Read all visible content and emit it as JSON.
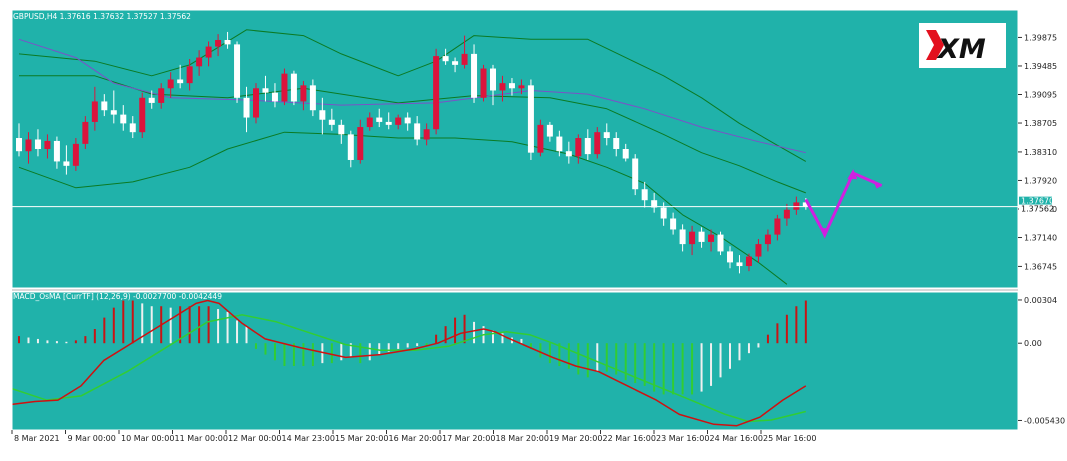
{
  "colors": {
    "background": "#20b2aa",
    "frame": "#ffffff",
    "bull_candle": "#dc143c",
    "bear_candle": "#ffffff",
    "bollinger": "#0b7a23",
    "moving_average": "#7a52c8",
    "macd_line": "#d01010",
    "signal_line": "#32cd32",
    "osma_up": "#c81414",
    "osma_down": "#f0f0f0",
    "osma_green": "#32cd32",
    "arrow": "#d020e0"
  },
  "header": {
    "symbol_info": "GBPUSD,H4  1.37616 1.37632 1.37527 1.37562",
    "indicator_info": "MACD_OsMA [CurrTF] (12,26,9) -0.0027700 -0.0042449"
  },
  "logo": {
    "text": "XM"
  },
  "chart_data": [
    {
      "type": "candlestick",
      "symbol": "GBPUSD",
      "timeframe": "H4",
      "ylim": [
        1.3645,
        1.4025
      ],
      "y_ticks": [
        "1.39875",
        "1.39485",
        "1.39095",
        "1.38705",
        "1.38310",
        "1.37920",
        "1.37530",
        "1.37140",
        "1.36745"
      ],
      "price_labels": [
        "1.37670",
        "1.37562"
      ],
      "current_price": 1.37562,
      "x_ticks": [
        "8 Mar 2021",
        "9 Mar 00:00",
        "10 Mar 00:00",
        "11 Mar 00:00",
        "12 Mar 00:00",
        "14 Mar 23:00",
        "15 Mar 20:00",
        "16 Mar 20:00",
        "17 Mar 20:00",
        "18 Mar 20:00",
        "19 Mar 20:00",
        "22 Mar 16:00",
        "23 Mar 16:00",
        "24 Mar 16:00",
        "25 Mar 16:00"
      ],
      "candles": [
        [
          1.385,
          1.387,
          1.3825,
          1.3832
        ],
        [
          1.3832,
          1.3858,
          1.3815,
          1.3848
        ],
        [
          1.3848,
          1.3862,
          1.3825,
          1.3835
        ],
        [
          1.3835,
          1.3855,
          1.3822,
          1.3846
        ],
        [
          1.3846,
          1.3852,
          1.3808,
          1.3818
        ],
        [
          1.3818,
          1.384,
          1.38,
          1.3812
        ],
        [
          1.3812,
          1.385,
          1.3805,
          1.3842
        ],
        [
          1.3842,
          1.388,
          1.3835,
          1.3872
        ],
        [
          1.3872,
          1.392,
          1.386,
          1.39
        ],
        [
          1.39,
          1.391,
          1.388,
          1.3888
        ],
        [
          1.3888,
          1.3915,
          1.387,
          1.3882
        ],
        [
          1.3882,
          1.3895,
          1.386,
          1.387
        ],
        [
          1.387,
          1.388,
          1.385,
          1.3858
        ],
        [
          1.3858,
          1.3912,
          1.385,
          1.3905
        ],
        [
          1.3905,
          1.3915,
          1.389,
          1.3898
        ],
        [
          1.3898,
          1.3925,
          1.389,
          1.3918
        ],
        [
          1.3918,
          1.394,
          1.3905,
          1.393
        ],
        [
          1.393,
          1.395,
          1.3918,
          1.3925
        ],
        [
          1.3925,
          1.3958,
          1.3915,
          1.3948
        ],
        [
          1.3948,
          1.397,
          1.3935,
          1.396
        ],
        [
          1.396,
          1.3982,
          1.3948,
          1.3975
        ],
        [
          1.3975,
          1.3992,
          1.3962,
          1.3984
        ],
        [
          1.3984,
          1.3995,
          1.3972,
          1.3978
        ],
        [
          1.3978,
          1.3982,
          1.3898,
          1.3905
        ],
        [
          1.3905,
          1.392,
          1.3858,
          1.3878
        ],
        [
          1.3878,
          1.3925,
          1.387,
          1.3918
        ],
        [
          1.3918,
          1.3935,
          1.39,
          1.3912
        ],
        [
          1.3912,
          1.3925,
          1.3892,
          1.39
        ],
        [
          1.39,
          1.3945,
          1.3895,
          1.3938
        ],
        [
          1.3938,
          1.3942,
          1.3895,
          1.39
        ],
        [
          1.39,
          1.3928,
          1.3888,
          1.3922
        ],
        [
          1.3922,
          1.393,
          1.388,
          1.3888
        ],
        [
          1.3888,
          1.3905,
          1.3855,
          1.3875
        ],
        [
          1.3875,
          1.389,
          1.386,
          1.3868
        ],
        [
          1.3868,
          1.3875,
          1.3842,
          1.3855
        ],
        [
          1.3855,
          1.386,
          1.381,
          1.382
        ],
        [
          1.382,
          1.3875,
          1.3815,
          1.3865
        ],
        [
          1.3865,
          1.3885,
          1.386,
          1.3878
        ],
        [
          1.3878,
          1.389,
          1.3865,
          1.3872
        ],
        [
          1.3872,
          1.3885,
          1.3862,
          1.3868
        ],
        [
          1.3868,
          1.3882,
          1.3862,
          1.3878
        ],
        [
          1.3878,
          1.3885,
          1.386,
          1.387
        ],
        [
          1.387,
          1.388,
          1.384,
          1.3848
        ],
        [
          1.3848,
          1.387,
          1.384,
          1.3862
        ],
        [
          1.3862,
          1.3972,
          1.3855,
          1.3962
        ],
        [
          1.3962,
          1.3972,
          1.395,
          1.3955
        ],
        [
          1.3955,
          1.396,
          1.394,
          1.395
        ],
        [
          1.395,
          1.399,
          1.3945,
          1.3965
        ],
        [
          1.3965,
          1.3978,
          1.3898,
          1.3905
        ],
        [
          1.3905,
          1.395,
          1.39,
          1.3945
        ],
        [
          1.3945,
          1.395,
          1.3895,
          1.3915
        ],
        [
          1.3915,
          1.3935,
          1.39,
          1.3925
        ],
        [
          1.3925,
          1.3932,
          1.3908,
          1.3918
        ],
        [
          1.3918,
          1.393,
          1.391,
          1.3922
        ],
        [
          1.3922,
          1.393,
          1.382,
          1.383
        ],
        [
          1.383,
          1.3875,
          1.3825,
          1.3868
        ],
        [
          1.3868,
          1.3872,
          1.3845,
          1.3852
        ],
        [
          1.3852,
          1.386,
          1.3825,
          1.3832
        ],
        [
          1.3832,
          1.3845,
          1.3815,
          1.3825
        ],
        [
          1.3825,
          1.3855,
          1.3815,
          1.385
        ],
        [
          1.385,
          1.3862,
          1.382,
          1.3828
        ],
        [
          1.3828,
          1.3865,
          1.3822,
          1.3858
        ],
        [
          1.3858,
          1.387,
          1.384,
          1.385
        ],
        [
          1.385,
          1.3858,
          1.3825,
          1.3835
        ],
        [
          1.3835,
          1.3842,
          1.3818,
          1.3822
        ],
        [
          1.3822,
          1.3828,
          1.3772,
          1.378
        ],
        [
          1.378,
          1.379,
          1.3755,
          1.3765
        ],
        [
          1.3765,
          1.3775,
          1.3748,
          1.3755
        ],
        [
          1.3755,
          1.3762,
          1.373,
          1.374
        ],
        [
          1.374,
          1.3748,
          1.3718,
          1.3725
        ],
        [
          1.3725,
          1.3732,
          1.3695,
          1.3705
        ],
        [
          1.3705,
          1.373,
          1.369,
          1.3722
        ],
        [
          1.3722,
          1.3728,
          1.37,
          1.3708
        ],
        [
          1.3708,
          1.3725,
          1.3695,
          1.3718
        ],
        [
          1.3718,
          1.3722,
          1.369,
          1.3695
        ],
        [
          1.3695,
          1.3702,
          1.3672,
          1.368
        ],
        [
          1.368,
          1.369,
          1.3665,
          1.3675
        ],
        [
          1.3675,
          1.3692,
          1.3668,
          1.3688
        ],
        [
          1.3688,
          1.3712,
          1.368,
          1.3705
        ],
        [
          1.3705,
          1.3725,
          1.3695,
          1.3718
        ],
        [
          1.3718,
          1.3745,
          1.371,
          1.374
        ],
        [
          1.374,
          1.376,
          1.373,
          1.3752
        ],
        [
          1.3752,
          1.377,
          1.3745,
          1.3762
        ],
        [
          1.3762,
          1.3768,
          1.3752,
          1.3756
        ]
      ],
      "bollinger": {
        "upper": [
          [
            0,
            1.3965
          ],
          [
            8,
            1.3955
          ],
          [
            14,
            1.3935
          ],
          [
            18,
            1.395
          ],
          [
            24,
            1.3998
          ],
          [
            30,
            1.399
          ],
          [
            34,
            1.3965
          ],
          [
            40,
            1.3935
          ],
          [
            44,
            1.3955
          ],
          [
            48,
            1.399
          ],
          [
            54,
            1.3985
          ],
          [
            60,
            1.3985
          ],
          [
            64,
            1.396
          ],
          [
            68,
            1.3935
          ],
          [
            72,
            1.3905
          ],
          [
            76,
            1.387
          ],
          [
            80,
            1.384
          ],
          [
            83,
            1.3818
          ]
        ],
        "middle": [
          [
            0,
            1.3935
          ],
          [
            8,
            1.3935
          ],
          [
            14,
            1.391
          ],
          [
            22,
            1.3905
          ],
          [
            30,
            1.3918
          ],
          [
            40,
            1.3898
          ],
          [
            48,
            1.3908
          ],
          [
            56,
            1.3905
          ],
          [
            62,
            1.389
          ],
          [
            68,
            1.3855
          ],
          [
            72,
            1.383
          ],
          [
            76,
            1.3812
          ],
          [
            80,
            1.379
          ],
          [
            83,
            1.3775
          ]
        ],
        "lower": [
          [
            0,
            1.381
          ],
          [
            6,
            1.3782
          ],
          [
            12,
            1.379
          ],
          [
            18,
            1.381
          ],
          [
            22,
            1.3835
          ],
          [
            28,
            1.3858
          ],
          [
            34,
            1.3855
          ],
          [
            40,
            1.385
          ],
          [
            46,
            1.385
          ],
          [
            52,
            1.3845
          ],
          [
            58,
            1.3828
          ],
          [
            62,
            1.381
          ],
          [
            66,
            1.3788
          ],
          [
            70,
            1.3745
          ],
          [
            74,
            1.3715
          ],
          [
            78,
            1.368
          ],
          [
            81,
            1.365
          ]
        ]
      },
      "moving_average": [
        [
          0,
          1.3985
        ],
        [
          6,
          1.396
        ],
        [
          10,
          1.3925
        ],
        [
          16,
          1.3905
        ],
        [
          24,
          1.3902
        ],
        [
          34,
          1.3895
        ],
        [
          44,
          1.3898
        ],
        [
          54,
          1.3915
        ],
        [
          60,
          1.391
        ],
        [
          66,
          1.389
        ],
        [
          72,
          1.3865
        ],
        [
          78,
          1.3845
        ],
        [
          83,
          1.383
        ]
      ],
      "forecast_arrow": [
        [
          83,
          1.3766
        ],
        [
          85,
          1.3718
        ],
        [
          88,
          1.3802
        ],
        [
          91,
          1.3785
        ]
      ]
    },
    {
      "type": "histogram_with_lines",
      "title": "MACD_OsMA [CurrTF] (12,26,9)",
      "ylim": [
        -0.0061,
        0.0036
      ],
      "y_ticks": [
        "0.00304",
        "0.00",
        "-0.005430"
      ],
      "osma": [
        0.0005,
        0.0004,
        0.0003,
        0.0002,
        0.00015,
        0.0001,
        0.0002,
        0.0005,
        0.001,
        0.0018,
        0.0025,
        0.003,
        0.003,
        0.0028,
        0.0026,
        0.0026,
        0.0025,
        0.0026,
        0.0026,
        0.0026,
        0.0026,
        0.0024,
        0.0022,
        0.0016,
        0.0012,
        -0.0004,
        -0.0008,
        -0.0012,
        -0.0016,
        -0.0016,
        -0.0016,
        -0.0016,
        -0.0014,
        -0.0014,
        -0.0012,
        -0.001,
        -0.0014,
        -0.0012,
        -0.0008,
        -0.0006,
        -0.0004,
        -0.0003,
        -0.0002,
        -0.0002,
        0.0006,
        0.0012,
        0.0018,
        0.002,
        0.0015,
        0.0012,
        0.0009,
        0.0007,
        0.0004,
        0.0003,
        -0.0004,
        -0.001,
        -0.0014,
        -0.0016,
        -0.0018,
        -0.0022,
        -0.0024,
        -0.002,
        -0.002,
        -0.0022,
        -0.0026,
        -0.0028,
        -0.003,
        -0.0034,
        -0.0036,
        -0.0036,
        -0.0036,
        -0.0036,
        -0.0034,
        -0.003,
        -0.0024,
        -0.0018,
        -0.0012,
        -0.0007,
        -0.0003,
        0.0006,
        0.0014,
        0.002,
        0.0026,
        0.003
      ],
      "macd": [
        [
          0,
          -0.0043
        ],
        [
          4,
          -0.0041
        ],
        [
          8,
          -0.004
        ],
        [
          12,
          -0.003
        ],
        [
          16,
          -0.0012
        ],
        [
          22,
          0.0003
        ],
        [
          28,
          0.0018
        ],
        [
          32,
          0.0028
        ],
        [
          34,
          0.003
        ],
        [
          36,
          0.0028
        ],
        [
          40,
          0.0014
        ],
        [
          44,
          0.0003
        ],
        [
          50,
          -0.0003
        ],
        [
          58,
          -0.001
        ],
        [
          64,
          -0.0008
        ],
        [
          70,
          -0.0004
        ],
        [
          74,
          0.0
        ],
        [
          78,
          0.0007
        ],
        [
          82,
          0.001
        ],
        [
          84,
          0.0008
        ],
        [
          86,
          0.0004
        ],
        [
          90,
          -0.0003
        ],
        [
          94,
          -0.001
        ],
        [
          98,
          -0.0016
        ],
        [
          102,
          -0.002
        ],
        [
          106,
          -0.0028
        ],
        [
          112,
          -0.004
        ],
        [
          116,
          -0.005
        ],
        [
          122,
          -0.0057
        ],
        [
          126,
          -0.0058
        ],
        [
          130,
          -0.0052
        ],
        [
          134,
          -0.004
        ],
        [
          138,
          -0.003
        ]
      ],
      "signal": [
        [
          0,
          -0.0032
        ],
        [
          6,
          -0.004
        ],
        [
          12,
          -0.0037
        ],
        [
          20,
          -0.002
        ],
        [
          28,
          0.0
        ],
        [
          34,
          0.0015
        ],
        [
          40,
          0.002
        ],
        [
          46,
          0.0015
        ],
        [
          52,
          0.0007
        ],
        [
          58,
          -0.0001
        ],
        [
          64,
          -0.0005
        ],
        [
          70,
          -0.0005
        ],
        [
          76,
          -0.0002
        ],
        [
          82,
          0.0006
        ],
        [
          86,
          0.0008
        ],
        [
          90,
          0.0006
        ],
        [
          94,
          0.0
        ],
        [
          100,
          -0.001
        ],
        [
          106,
          -0.002
        ],
        [
          112,
          -0.003
        ],
        [
          118,
          -0.004
        ],
        [
          124,
          -0.005
        ],
        [
          128,
          -0.0055
        ],
        [
          132,
          -0.0054
        ],
        [
          136,
          -0.005
        ],
        [
          138,
          -0.0048
        ]
      ]
    }
  ]
}
